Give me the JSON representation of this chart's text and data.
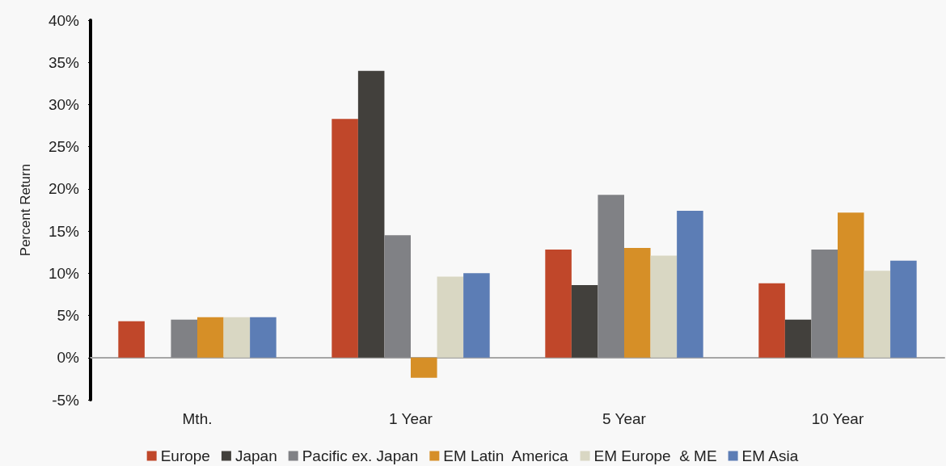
{
  "chart_data": {
    "type": "bar",
    "ylabel": "Percent Return",
    "categories": [
      "Mth.",
      "1 Year",
      "5 Year",
      "10 Year"
    ],
    "series": [
      {
        "name": "Europe",
        "color": "#c0472a",
        "values": [
          4.3,
          28.3,
          12.8,
          8.8
        ]
      },
      {
        "name": "Japan",
        "color": "#42403c",
        "values": [
          null,
          34.0,
          8.6,
          4.5
        ]
      },
      {
        "name": "Pacific ex. Japan",
        "color": "#808185",
        "values": [
          4.5,
          14.5,
          19.3,
          12.8
        ]
      },
      {
        "name": "EM Latin  America",
        "color": "#d68f27",
        "values": [
          4.8,
          -2.4,
          13.0,
          17.2
        ]
      },
      {
        "name": "EM Europe  & ME",
        "color": "#d9d7c3",
        "values": [
          4.8,
          9.6,
          12.1,
          10.3
        ]
      },
      {
        "name": "EM Asia",
        "color": "#5c7db5",
        "values": [
          4.8,
          10.0,
          17.4,
          11.5
        ]
      }
    ],
    "ylim": [
      -5,
      40
    ],
    "yticks": [
      {
        "value": -5,
        "label": "-5%"
      },
      {
        "value": 0,
        "label": "0%"
      },
      {
        "value": 5,
        "label": "5%"
      },
      {
        "value": 10,
        "label": "10%"
      },
      {
        "value": 15,
        "label": "15%"
      },
      {
        "value": 20,
        "label": "20%"
      },
      {
        "value": 25,
        "label": "25%"
      },
      {
        "value": 30,
        "label": "30%"
      },
      {
        "value": 35,
        "label": "35%"
      },
      {
        "value": 40,
        "label": "40%"
      }
    ],
    "legend": "bottom"
  }
}
